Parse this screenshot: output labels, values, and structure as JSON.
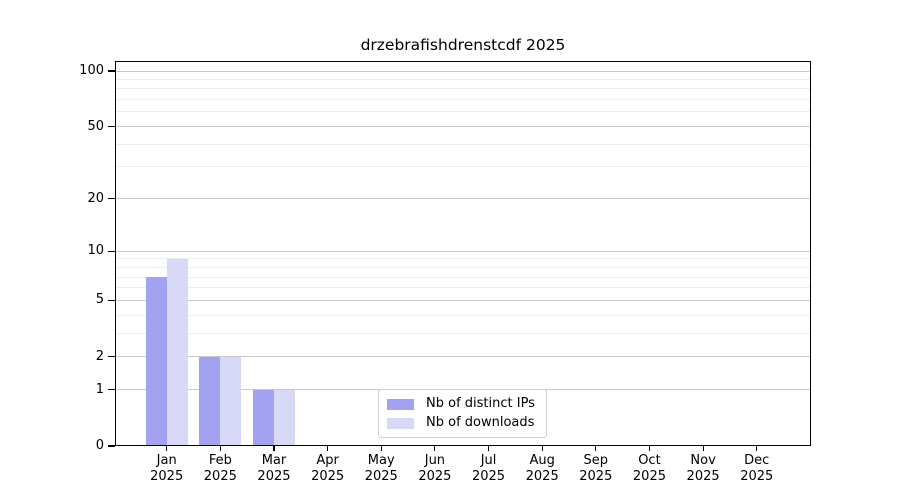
{
  "title": "drzebrafishdrenstcdf 2025",
  "legend": {
    "items": [
      {
        "label": "Nb of distinct IPs",
        "color": "#a2a2f0"
      },
      {
        "label": "Nb of downloads",
        "color": "#d8d8f7"
      }
    ]
  },
  "chart_data": {
    "type": "bar",
    "title": "drzebrafishdrenstcdf 2025",
    "categories": [
      "Jan",
      "Feb",
      "Mar",
      "Apr",
      "May",
      "Jun",
      "Jul",
      "Aug",
      "Sep",
      "Oct",
      "Nov",
      "Dec"
    ],
    "category_year": "2025",
    "x_tick_labels": [
      "Jan 2025",
      "Feb 2025",
      "Mar 2025",
      "Apr 2025",
      "May 2025",
      "Jun 2025",
      "Jul 2025",
      "Aug 2025",
      "Sep 2025",
      "Oct 2025",
      "Nov 2025",
      "Dec 2025"
    ],
    "series": [
      {
        "name": "Nb of distinct IPs",
        "color": "#a2a2f0",
        "values": [
          7,
          2,
          1,
          0,
          0,
          0,
          0,
          0,
          0,
          0,
          0,
          0
        ]
      },
      {
        "name": "Nb of downloads",
        "color": "#d8d8f7",
        "values": [
          9,
          2,
          1,
          0,
          0,
          0,
          0,
          0,
          0,
          0,
          0,
          0
        ]
      }
    ],
    "xlabel": "",
    "ylabel": "",
    "y_axis": {
      "scale": "log10(1+x)",
      "major_ticks": [
        0,
        1,
        2,
        5,
        10,
        20,
        50,
        100
      ],
      "minor_ticks": [
        3,
        4,
        6,
        7,
        8,
        9,
        30,
        40,
        60,
        70,
        80,
        90
      ],
      "ylim": [
        0,
        112
      ]
    },
    "grid": true,
    "legend_position": "bottom-center"
  },
  "colors": {
    "bar_distinct_ips": "#a2a2f0",
    "bar_downloads": "#d8d8f7",
    "grid_major": "#c9c9c9",
    "grid_minor": "#ededed",
    "axis": "#000000",
    "legend_border": "#cfcfcf",
    "background": "#ffffff",
    "text": "#000000"
  }
}
